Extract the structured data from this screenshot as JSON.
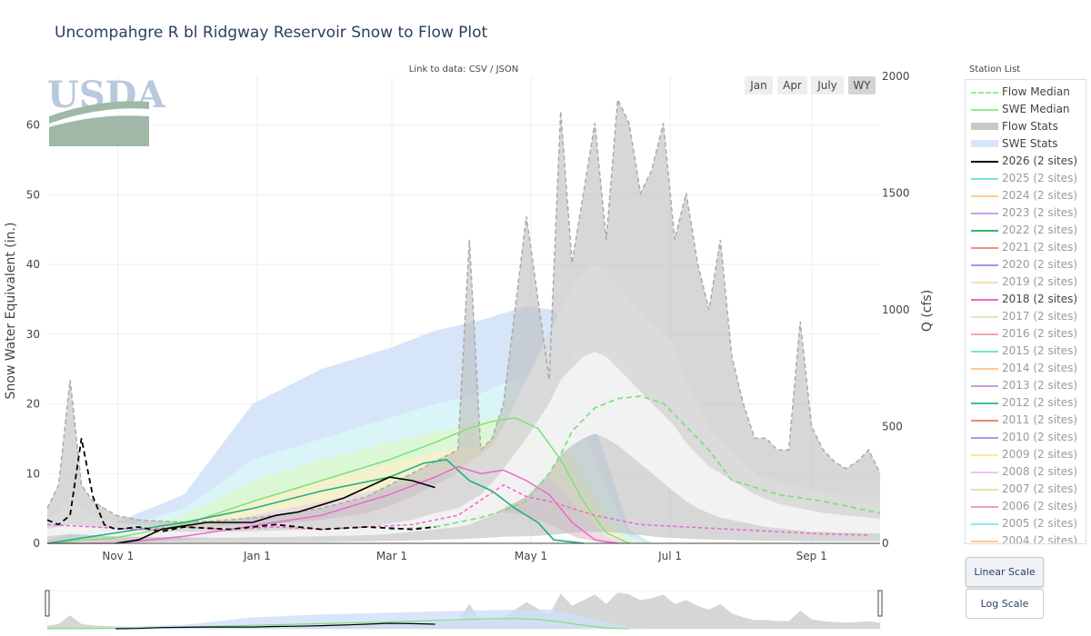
{
  "title": "Uncompahgre R bl Ridgway Reservoir Snow to Flow Plot",
  "link_to_data": "Link to data: CSV / JSON",
  "logo_text": "USDA",
  "range_buttons": [
    {
      "label": "Jan",
      "active": false
    },
    {
      "label": "Apr",
      "active": false
    },
    {
      "label": "July",
      "active": false
    },
    {
      "label": "WY",
      "active": true
    }
  ],
  "station_list_label": "Station List",
  "legend": [
    {
      "label": "Flow Median",
      "color": "#90ee90",
      "style": "dash",
      "dim": false
    },
    {
      "label": "SWE Median",
      "color": "#90ee90",
      "style": "solid",
      "dim": false
    },
    {
      "label": "Flow Stats",
      "color": "#c8c8c8",
      "style": "band",
      "dim": false
    },
    {
      "label": "SWE Stats",
      "color": "#d6e6fa",
      "style": "band",
      "dim": false
    },
    {
      "label": "2026 (2 sites)",
      "color": "#000000",
      "style": "solid",
      "dim": false
    },
    {
      "label": "2025 (2 sites)",
      "color": "#7ee0e0",
      "style": "solid",
      "dim": true
    },
    {
      "label": "2024 (2 sites)",
      "color": "#ffcc99",
      "style": "solid",
      "dim": true
    },
    {
      "label": "2023 (2 sites)",
      "color": "#c9a0e8",
      "style": "solid",
      "dim": true
    },
    {
      "label": "2022 (2 sites)",
      "color": "#3cb371",
      "style": "solid",
      "dim": true
    },
    {
      "label": "2021 (2 sites)",
      "color": "#e9967a",
      "style": "solid",
      "dim": true
    },
    {
      "label": "2020 (2 sites)",
      "color": "#9999ee",
      "style": "solid",
      "dim": true
    },
    {
      "label": "2019 (2 sites)",
      "color": "#f5deb3",
      "style": "solid",
      "dim": true
    },
    {
      "label": "2018 (2 sites)",
      "color": "#ee66cc",
      "style": "solid",
      "dim": false
    },
    {
      "label": "2017 (2 sites)",
      "color": "#e0e8b0",
      "style": "solid",
      "dim": true
    },
    {
      "label": "2016 (2 sites)",
      "color": "#f4a6b0",
      "style": "solid",
      "dim": true
    },
    {
      "label": "2015 (2 sites)",
      "color": "#80e0d0",
      "style": "solid",
      "dim": true
    },
    {
      "label": "2014 (2 sites)",
      "color": "#ffc896",
      "style": "solid",
      "dim": true
    },
    {
      "label": "2013 (2 sites)",
      "color": "#c0a0e0",
      "style": "solid",
      "dim": true
    },
    {
      "label": "2012 (2 sites)",
      "color": "#40c090",
      "style": "solid",
      "dim": true
    },
    {
      "label": "2011 (2 sites)",
      "color": "#e09070",
      "style": "solid",
      "dim": true
    },
    {
      "label": "2010 (2 sites)",
      "color": "#a0a0f0",
      "style": "solid",
      "dim": true
    },
    {
      "label": "2009 (2 sites)",
      "color": "#fbe6a0",
      "style": "solid",
      "dim": true
    },
    {
      "label": "2008 (2 sites)",
      "color": "#f7c0f0",
      "style": "solid",
      "dim": true
    },
    {
      "label": "2007 (2 sites)",
      "color": "#d8e8a8",
      "style": "solid",
      "dim": true
    },
    {
      "label": "2006 (2 sites)",
      "color": "#f4a0b0",
      "style": "solid",
      "dim": true
    },
    {
      "label": "2005 (2 sites)",
      "color": "#90e8e8",
      "style": "solid",
      "dim": true
    },
    {
      "label": "2004 (2 sites)",
      "color": "#ffc896",
      "style": "solid",
      "dim": true
    }
  ],
  "scale_buttons": [
    {
      "label": "Linear Scale",
      "active": true
    },
    {
      "label": "Log Scale",
      "active": false
    }
  ],
  "chart_data": {
    "type": "line",
    "x_axis": {
      "ticks": [
        "Nov 1",
        "Jan 1",
        "Mar 1",
        "May 1",
        "Jul 1",
        "Sep 1"
      ],
      "tick_days": [
        31,
        92,
        151,
        212,
        273,
        335
      ],
      "range_days": [
        0,
        365
      ]
    },
    "y_axis_left": {
      "label": "Snow Water Equivalent (in.)",
      "range": [
        0,
        67
      ],
      "ticks": [
        0,
        10,
        20,
        30,
        40,
        50,
        60
      ]
    },
    "y_axis_right": {
      "label": "Q (cfs)",
      "range": [
        0,
        2000
      ],
      "ticks": [
        0,
        500,
        1000,
        1500,
        2000
      ]
    },
    "grid": true,
    "legend_position": "right",
    "swe_stats": {
      "days": [
        0,
        30,
        60,
        90,
        120,
        150,
        170,
        190,
        200,
        210,
        222,
        232,
        245,
        255,
        265
      ],
      "max": [
        0.5,
        3,
        7,
        20,
        25,
        28,
        30.5,
        32,
        33,
        34,
        33.5,
        25,
        12,
        2,
        0
      ],
      "p90": [
        0.3,
        2,
        5,
        12,
        15,
        18,
        20,
        21.5,
        23,
        24,
        24,
        18,
        8,
        1,
        0
      ],
      "p75": [
        0.2,
        1.5,
        4,
        9,
        12,
        14.5,
        16,
        17.5,
        18.5,
        19,
        18,
        12,
        4,
        0.5,
        0
      ],
      "p50": [
        0.1,
        1,
        2.7,
        6,
        9,
        11.5,
        13,
        14.3,
        15,
        15.5,
        14,
        9,
        2.5,
        0.2,
        0
      ],
      "p25": [
        0,
        0.5,
        1.5,
        4,
        6,
        8,
        9.5,
        10.5,
        11,
        11,
        9,
        5,
        1,
        0,
        0
      ],
      "p10": [
        0,
        0.2,
        1,
        2.5,
        4,
        5.5,
        6.5,
        7,
        7,
        6.5,
        4.5,
        2,
        0.3,
        0,
        0
      ],
      "min": [
        0,
        0,
        0.5,
        1.5,
        2.5,
        3.5,
        4,
        4.5,
        4.5,
        4,
        2.5,
        0.8,
        0,
        0,
        0
      ]
    },
    "swe_median": {
      "days": [
        0,
        30,
        60,
        90,
        120,
        150,
        170,
        185,
        195,
        205,
        215,
        225,
        235,
        245,
        255
      ],
      "values": [
        0,
        0.8,
        2.7,
        6,
        9,
        12,
        14.5,
        16.5,
        17.5,
        18,
        16.5,
        12,
        6,
        1.5,
        0
      ]
    },
    "swe_2026": {
      "days": [
        30,
        40,
        50,
        60,
        70,
        80,
        90,
        100,
        110,
        120,
        130,
        140,
        150,
        160,
        170
      ],
      "values": [
        0,
        0.5,
        2,
        2.5,
        3,
        3,
        3,
        4,
        4.5,
        5.5,
        6.5,
        8,
        9.5,
        9,
        8
      ]
    },
    "swe_2018": {
      "days": [
        0,
        30,
        60,
        90,
        120,
        150,
        170,
        180,
        190,
        200,
        210,
        220,
        230,
        240,
        250
      ],
      "values": [
        0,
        0,
        1,
        2.5,
        4,
        7,
        9.5,
        11,
        10,
        10.5,
        9,
        7,
        3,
        0.5,
        0
      ]
    },
    "swe_teal": {
      "days": [
        0,
        30,
        60,
        90,
        120,
        150,
        165,
        175,
        185,
        195,
        205,
        215,
        222,
        235
      ],
      "values": [
        0,
        1.5,
        3,
        5,
        7.5,
        9.5,
        11.5,
        12,
        9,
        7.5,
        5,
        3,
        0.5,
        0
      ]
    },
    "flow_stats": {
      "days": [
        0,
        5,
        10,
        15,
        20,
        25,
        30,
        40,
        60,
        80,
        100,
        120,
        140,
        150,
        160,
        170,
        180,
        185,
        190,
        195,
        200,
        210,
        220,
        225,
        230,
        235,
        240,
        245,
        250,
        255,
        260,
        265,
        270,
        275,
        280,
        285,
        290,
        295,
        300,
        305,
        310,
        315,
        320,
        325,
        330,
        335,
        340,
        345,
        350,
        355,
        360,
        365
      ],
      "max": [
        150,
        250,
        700,
        250,
        180,
        150,
        120,
        100,
        90,
        100,
        120,
        150,
        200,
        250,
        300,
        350,
        400,
        1300,
        400,
        450,
        600,
        1400,
        700,
        1850,
        1200,
        1500,
        1800,
        1300,
        1900,
        1800,
        1500,
        1600,
        1800,
        1300,
        1500,
        1200,
        1000,
        1300,
        800,
        600,
        450,
        450,
        400,
        400,
        950,
        500,
        400,
        350,
        320,
        350,
        400,
        300
      ],
      "p75": [
        100,
        130,
        200,
        150,
        120,
        100,
        90,
        80,
        70,
        75,
        85,
        100,
        130,
        160,
        200,
        250,
        300,
        350,
        380,
        420,
        500,
        700,
        900,
        1000,
        1100,
        1150,
        1200,
        1150,
        1100,
        1050,
        1000,
        950,
        900,
        850,
        700,
        600,
        500,
        450,
        400,
        350,
        300,
        280,
        260,
        250,
        240,
        230,
        220,
        210,
        200,
        200,
        210,
        200
      ],
      "p50": [
        60,
        70,
        80,
        75,
        70,
        65,
        60,
        55,
        50,
        50,
        55,
        60,
        70,
        85,
        100,
        130,
        150,
        180,
        210,
        260,
        320,
        450,
        600,
        700,
        750,
        800,
        820,
        800,
        750,
        700,
        650,
        600,
        550,
        500,
        430,
        380,
        330,
        300,
        270,
        240,
        210,
        190,
        170,
        160,
        150,
        140,
        130,
        125,
        120,
        115,
        110,
        105
      ],
      "p25": [
        30,
        35,
        40,
        38,
        35,
        32,
        30,
        28,
        25,
        25,
        27,
        30,
        35,
        40,
        50,
        60,
        70,
        80,
        100,
        120,
        150,
        200,
        300,
        380,
        420,
        450,
        470,
        450,
        420,
        380,
        340,
        300,
        260,
        220,
        180,
        150,
        130,
        110,
        100,
        90,
        80,
        70,
        65,
        60,
        55,
        50,
        50,
        48,
        45,
        45,
        44,
        42
      ],
      "min": [
        5,
        8,
        10,
        10,
        8,
        7,
        6,
        5,
        5,
        5,
        5,
        6,
        8,
        10,
        12,
        15,
        18,
        20,
        22,
        25,
        28,
        30,
        35,
        40,
        45,
        50,
        50,
        48,
        45,
        40,
        35,
        30,
        25,
        22,
        20,
        18,
        16,
        15,
        14,
        13,
        12,
        11,
        10,
        10,
        9,
        9,
        8,
        8,
        8,
        8,
        8,
        8
      ]
    },
    "flow_median": {
      "days": [
        150,
        170,
        180,
        190,
        200,
        210,
        220,
        225,
        230,
        240,
        250,
        260,
        270,
        280,
        290,
        300,
        320,
        340,
        355,
        365
      ],
      "values": [
        60,
        70,
        90,
        110,
        140,
        180,
        300,
        380,
        480,
        580,
        620,
        630,
        600,
        500,
        400,
        270,
        210,
        180,
        150,
        130
      ]
    },
    "flow_2026": {
      "days": [
        0,
        5,
        10,
        15,
        20,
        25,
        30,
        40,
        50,
        60,
        80,
        100,
        120,
        140,
        160,
        170
      ],
      "values": [
        100,
        80,
        120,
        450,
        200,
        80,
        60,
        70,
        50,
        70,
        60,
        80,
        60,
        70,
        60,
        70
      ]
    },
    "flow_2018": {
      "days": [
        0,
        20,
        40,
        60,
        80,
        100,
        120,
        140,
        160,
        180,
        200,
        210,
        220,
        230,
        240,
        250,
        260,
        280,
        300,
        320,
        340,
        360
      ],
      "values": [
        80,
        70,
        60,
        70,
        60,
        70,
        60,
        70,
        80,
        120,
        250,
        200,
        180,
        150,
        120,
        100,
        80,
        70,
        60,
        50,
        40,
        35
      ]
    }
  }
}
